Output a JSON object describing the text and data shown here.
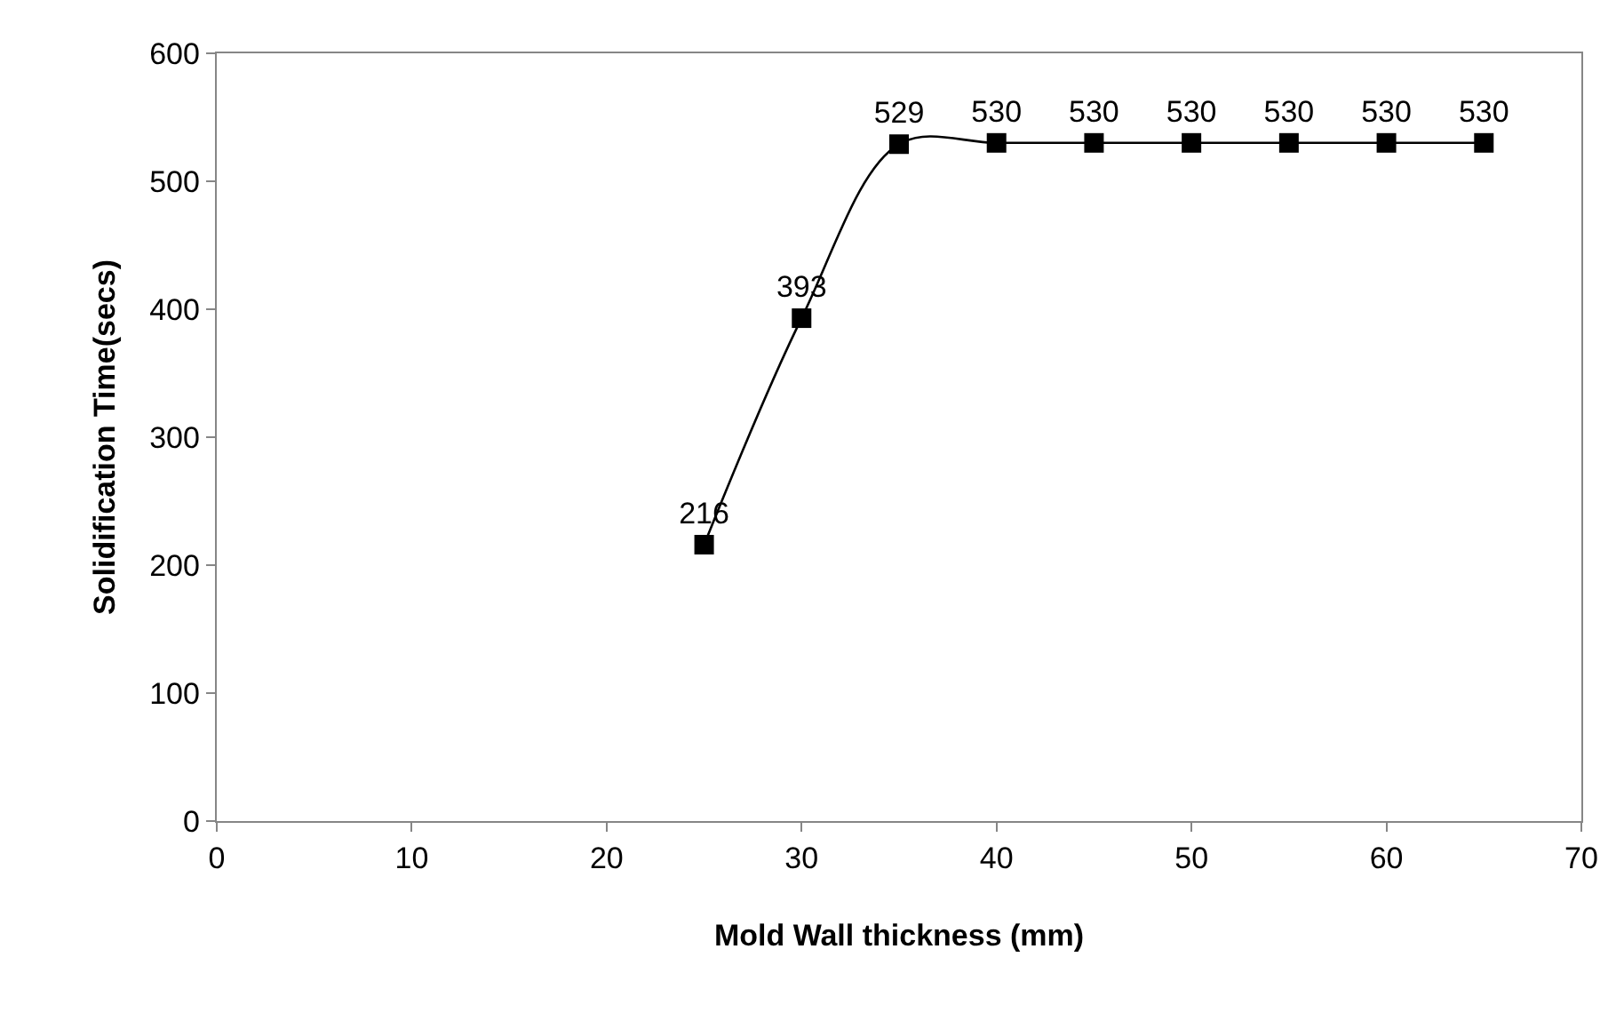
{
  "chart_data": {
    "type": "line",
    "xlabel": "Mold Wall thickness (mm)",
    "ylabel": "Solidification Time(secs)",
    "x": [
      25,
      30,
      35,
      40,
      45,
      50,
      55,
      60,
      65
    ],
    "series": [
      {
        "color": "#000000",
        "values": [
          216,
          393,
          529,
          530,
          530,
          530,
          530,
          530,
          530
        ]
      }
    ],
    "xlim": [
      0,
      70
    ],
    "xticks": [
      0,
      10,
      20,
      30,
      40,
      50,
      60,
      70
    ],
    "ylim": [
      0,
      600
    ],
    "yticks": [
      0,
      100,
      200,
      300,
      400,
      500,
      600
    ],
    "data_labels": true,
    "marker": "square",
    "line_style": "solid",
    "grid": false
  }
}
